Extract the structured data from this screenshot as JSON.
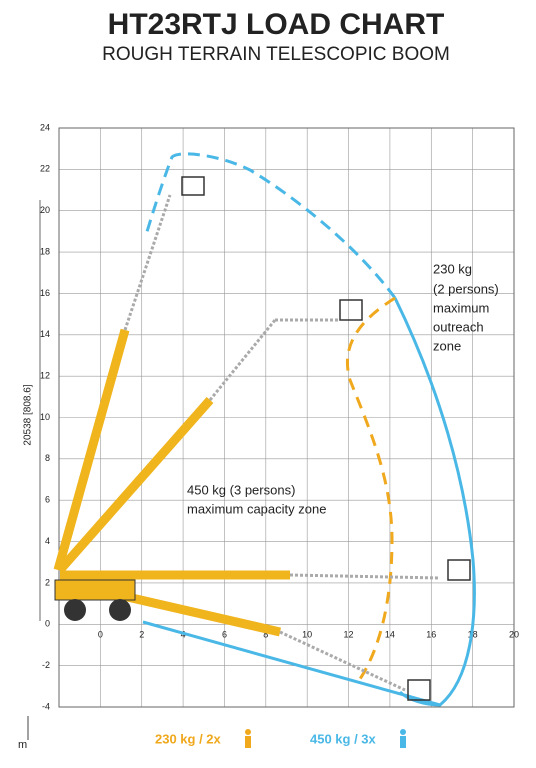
{
  "header": {
    "title": "HT23RTJ LOAD CHART",
    "subtitle": "ROUGH TERRAIN TELESCOPIC BOOM"
  },
  "axes": {
    "xlim": [
      -2,
      20
    ],
    "ylim": [
      -4,
      24
    ],
    "xticks": [
      0,
      2,
      4,
      6,
      8,
      10,
      12,
      14,
      16,
      18,
      20
    ],
    "yticks": [
      -4,
      -2,
      0,
      2,
      4,
      6,
      8,
      10,
      12,
      14,
      16,
      18,
      20,
      22,
      24
    ],
    "height_label": "20538 [808.6]",
    "unit": "m"
  },
  "annotations": {
    "outreach": [
      "230 kg",
      "(2 persons)",
      "maximum",
      "outreach",
      "zone"
    ],
    "capacity": [
      "450 kg (3 persons)",
      "maximum capacity zone"
    ]
  },
  "legend": [
    {
      "label": "230 kg / 2x",
      "color": "#f0a81c"
    },
    {
      "label": "450 kg / 3x",
      "color": "#4ab8e6"
    }
  ]
}
